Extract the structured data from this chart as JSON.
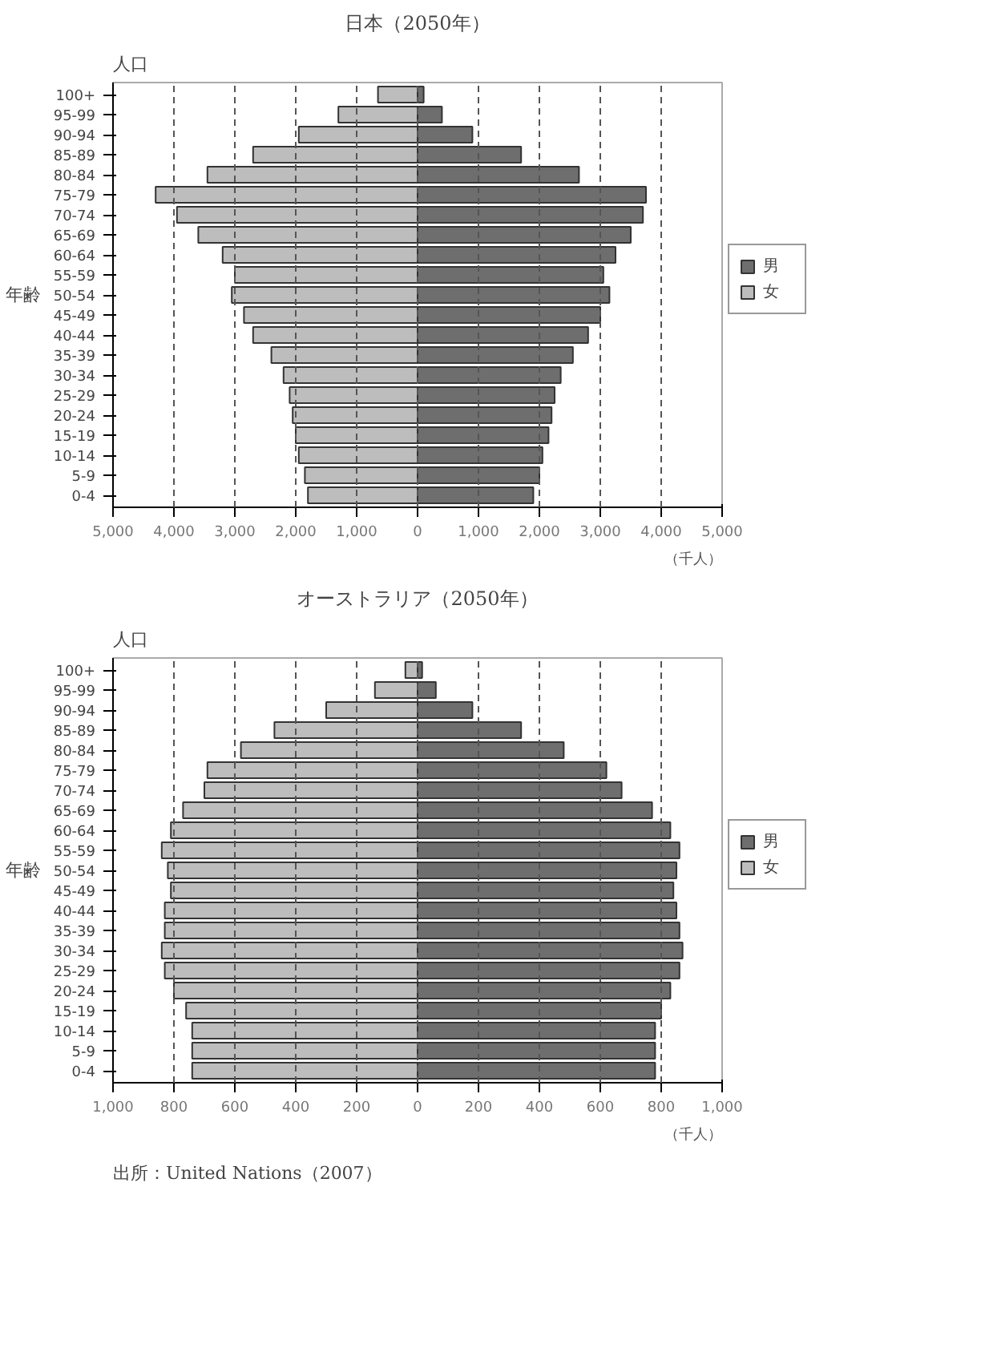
{
  "chart_data": [
    {
      "type": "bar",
      "orientation": "horizontal",
      "stacked": true,
      "title": "日本（2050年）",
      "xlabel": "（千人）",
      "ylabel": "年齢",
      "annotations": [
        "人口"
      ],
      "categories": [
        "100+",
        "95-99",
        "90-94",
        "85-89",
        "80-84",
        "75-79",
        "70-74",
        "65-69",
        "60-64",
        "55-59",
        "50-54",
        "45-49",
        "40-44",
        "35-39",
        "30-34",
        "25-29",
        "20-24",
        "15-19",
        "10-14",
        "5-9",
        "0-4"
      ],
      "series": [
        {
          "name": "男",
          "color": "#6e6e6e",
          "values": [
            100,
            400,
            900,
            1700,
            2650,
            3750,
            3700,
            3500,
            3250,
            3050,
            3150,
            3000,
            2800,
            2550,
            2350,
            2250,
            2200,
            2150,
            2050,
            2000,
            1900
          ]
        },
        {
          "name": "女",
          "color": "#bdbdbd",
          "values": [
            -650,
            -1300,
            -1950,
            -2700,
            -3450,
            -4300,
            -3950,
            -3600,
            -3200,
            -3000,
            -3050,
            -2850,
            -2700,
            -2400,
            -2200,
            -2100,
            -2050,
            -2000,
            -1950,
            -1850,
            -1800
          ]
        }
      ],
      "xlim": [
        -5000,
        5000
      ],
      "xticks": [
        {
          "value": -5000,
          "label": "5,000"
        },
        {
          "value": -4000,
          "label": "4,000"
        },
        {
          "value": -3000,
          "label": "3,000"
        },
        {
          "value": -2000,
          "label": "2,000"
        },
        {
          "value": -1000,
          "label": "1,000"
        },
        0,
        {
          "value": 1000,
          "label": "1,000"
        },
        {
          "value": 2000,
          "label": "2,000"
        },
        {
          "value": 3000,
          "label": "3,000"
        },
        {
          "value": 4000,
          "label": "4,000"
        },
        {
          "value": 5000,
          "label": "5,000"
        }
      ],
      "grid": "x",
      "legend": "right"
    },
    {
      "type": "bar",
      "orientation": "horizontal",
      "stacked": true,
      "title": "オーストラリア（2050年）",
      "xlabel": "（千人）",
      "ylabel": "年齢",
      "annotations": [
        "人口",
        "出所：United Nations（2007）"
      ],
      "categories": [
        "100+",
        "95-99",
        "90-94",
        "85-89",
        "80-84",
        "75-79",
        "70-74",
        "65-69",
        "60-64",
        "55-59",
        "50-54",
        "45-49",
        "40-44",
        "35-39",
        "30-34",
        "25-29",
        "20-24",
        "15-19",
        "10-14",
        "5-9",
        "0-4"
      ],
      "series": [
        {
          "name": "男",
          "color": "#6e6e6e",
          "values": [
            15,
            60,
            180,
            340,
            480,
            620,
            670,
            770,
            830,
            860,
            850,
            840,
            850,
            860,
            870,
            860,
            830,
            800,
            780,
            780,
            780
          ]
        },
        {
          "name": "女",
          "color": "#bdbdbd",
          "values": [
            -40,
            -140,
            -300,
            -470,
            -580,
            -690,
            -700,
            -770,
            -810,
            -840,
            -820,
            -810,
            -830,
            -830,
            -840,
            -830,
            -800,
            -760,
            -740,
            -740,
            -740
          ]
        }
      ],
      "xlim": [
        -1000,
        1000
      ],
      "xticks": [
        {
          "value": -1000,
          "label": "1,000"
        },
        {
          "value": -800,
          "label": "800"
        },
        {
          "value": -600,
          "label": "600"
        },
        {
          "value": -400,
          "label": "400"
        },
        {
          "value": -200,
          "label": "200"
        },
        0,
        200,
        400,
        600,
        800,
        {
          "value": 1000,
          "label": "1,000"
        }
      ],
      "grid": "x",
      "legend": "right"
    }
  ]
}
